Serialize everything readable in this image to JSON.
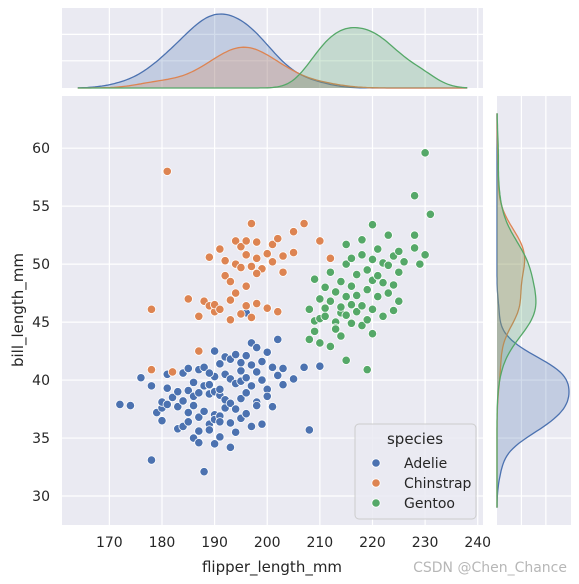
{
  "chart_data": {
    "type": "scatter",
    "subtype": "jointplot",
    "xlabel": "flipper_length_mm",
    "ylabel": "bill_length_mm",
    "xlim": [
      161,
      241
    ],
    "ylim": [
      27.5,
      64.5
    ],
    "xticks": [
      170,
      180,
      190,
      200,
      210,
      220,
      230,
      240
    ],
    "yticks": [
      30,
      35,
      40,
      45,
      50,
      55,
      60
    ],
    "grid": true,
    "legend": {
      "title": "species",
      "placement": "lower right"
    },
    "background": "#eaeaf2",
    "series": [
      {
        "name": "Adelie",
        "color": "#4c72b0",
        "points": [
          [
            172,
            37.9
          ],
          [
            174,
            37.8
          ],
          [
            176,
            40.2
          ],
          [
            178,
            39.5
          ],
          [
            178,
            33.1
          ],
          [
            179,
            37.2
          ],
          [
            180,
            37.6
          ],
          [
            180,
            38.1
          ],
          [
            180,
            36.5
          ],
          [
            181,
            39.3
          ],
          [
            181,
            37.9
          ],
          [
            182,
            38.5
          ],
          [
            183,
            35.8
          ],
          [
            183,
            37.7
          ],
          [
            184,
            40.6
          ],
          [
            184,
            36.0
          ],
          [
            184,
            38.2
          ],
          [
            185,
            39.1
          ],
          [
            185,
            41.0
          ],
          [
            185,
            36.4
          ],
          [
            186,
            37.8
          ],
          [
            186,
            39.8
          ],
          [
            186,
            35.0
          ],
          [
            186,
            38.6
          ],
          [
            187,
            40.9
          ],
          [
            187,
            36.8
          ],
          [
            187,
            34.6
          ],
          [
            187,
            38.9
          ],
          [
            188,
            39.5
          ],
          [
            188,
            37.3
          ],
          [
            188,
            32.1
          ],
          [
            188,
            41.1
          ],
          [
            189,
            39.6
          ],
          [
            189,
            36.2
          ],
          [
            189,
            38.8
          ],
          [
            189,
            35.7
          ],
          [
            190,
            40.3
          ],
          [
            190,
            37.0
          ],
          [
            190,
            42.5
          ],
          [
            190,
            39.0
          ],
          [
            190,
            36.6
          ],
          [
            190,
            34.5
          ],
          [
            191,
            38.7
          ],
          [
            191,
            41.4
          ],
          [
            191,
            36.9
          ],
          [
            191,
            39.2
          ],
          [
            191,
            35.1
          ],
          [
            192,
            40.5
          ],
          [
            192,
            37.6
          ],
          [
            192,
            42.0
          ],
          [
            192,
            38.3
          ],
          [
            193,
            40.1
          ],
          [
            193,
            36.3
          ],
          [
            193,
            41.8
          ],
          [
            193,
            38.0
          ],
          [
            193,
            34.2
          ],
          [
            194,
            39.7
          ],
          [
            194,
            37.5
          ],
          [
            194,
            42.2
          ],
          [
            194,
            35.5
          ],
          [
            195,
            40.8
          ],
          [
            195,
            38.4
          ],
          [
            195,
            36.7
          ],
          [
            195,
            41.5
          ],
          [
            195,
            39.9
          ],
          [
            196,
            37.1
          ],
          [
            196,
            42.1
          ],
          [
            196,
            38.9
          ],
          [
            196,
            40.2
          ],
          [
            196,
            45.8
          ],
          [
            197,
            39.5
          ],
          [
            197,
            41.3
          ],
          [
            197,
            36.0
          ],
          [
            197,
            43.2
          ],
          [
            198,
            40.7
          ],
          [
            198,
            38.1
          ],
          [
            198,
            42.8
          ],
          [
            198,
            37.8
          ],
          [
            199,
            40.0
          ],
          [
            199,
            36.2
          ],
          [
            199,
            41.6
          ],
          [
            200,
            39.2
          ],
          [
            200,
            38.6
          ],
          [
            200,
            42.4
          ],
          [
            201,
            41.1
          ],
          [
            201,
            37.7
          ],
          [
            202,
            40.4
          ],
          [
            202,
            43.5
          ],
          [
            203,
            41.0
          ],
          [
            203,
            39.6
          ],
          [
            205,
            40.1
          ],
          [
            207,
            41.1
          ],
          [
            208,
            35.7
          ],
          [
            210,
            41.2
          ],
          [
            181,
            40.5
          ],
          [
            183,
            39.0
          ],
          [
            185,
            37.2
          ],
          [
            187,
            35.6
          ],
          [
            189,
            40.6
          ],
          [
            191,
            36.4
          ]
        ]
      },
      {
        "name": "Chinstrap",
        "color": "#dd8452",
        "points": [
          [
            178,
            46.1
          ],
          [
            178,
            40.9
          ],
          [
            181,
            58.0
          ],
          [
            182,
            40.7
          ],
          [
            185,
            47.0
          ],
          [
            187,
            42.5
          ],
          [
            187,
            45.5
          ],
          [
            188,
            46.8
          ],
          [
            189,
            50.6
          ],
          [
            189,
            46.4
          ],
          [
            190,
            45.9
          ],
          [
            190,
            46.5
          ],
          [
            191,
            51.3
          ],
          [
            191,
            46.1
          ],
          [
            192,
            49.0
          ],
          [
            192,
            50.3
          ],
          [
            193,
            48.5
          ],
          [
            193,
            46.9
          ],
          [
            193,
            45.2
          ],
          [
            194,
            50.0
          ],
          [
            194,
            52.0
          ],
          [
            194,
            47.5
          ],
          [
            195,
            51.5
          ],
          [
            195,
            49.7
          ],
          [
            195,
            45.7
          ],
          [
            196,
            52.0
          ],
          [
            196,
            48.1
          ],
          [
            196,
            46.4
          ],
          [
            196,
            50.8
          ],
          [
            197,
            49.8
          ],
          [
            197,
            53.5
          ],
          [
            197,
            45.4
          ],
          [
            198,
            50.5
          ],
          [
            198,
            46.6
          ],
          [
            198,
            51.9
          ],
          [
            199,
            49.6
          ],
          [
            200,
            50.9
          ],
          [
            200,
            46.2
          ],
          [
            201,
            51.7
          ],
          [
            201,
            50.2
          ],
          [
            202,
            52.2
          ],
          [
            202,
            45.9
          ],
          [
            203,
            49.3
          ],
          [
            203,
            50.7
          ],
          [
            205,
            52.8
          ],
          [
            205,
            51.0
          ],
          [
            207,
            53.5
          ],
          [
            210,
            52.0
          ],
          [
            212,
            50.5
          ],
          [
            198,
            49.2
          ]
        ]
      },
      {
        "name": "Gentoo",
        "color": "#55a868",
        "points": [
          [
            208,
            43.5
          ],
          [
            208,
            46.1
          ],
          [
            209,
            44.2
          ],
          [
            209,
            45.1
          ],
          [
            209,
            48.7
          ],
          [
            210,
            47.0
          ],
          [
            210,
            45.3
          ],
          [
            210,
            43.2
          ],
          [
            211,
            46.2
          ],
          [
            211,
            48.0
          ],
          [
            211,
            45.5
          ],
          [
            212,
            46.8
          ],
          [
            212,
            42.9
          ],
          [
            212,
            49.3
          ],
          [
            213,
            45.0
          ],
          [
            213,
            47.6
          ],
          [
            213,
            44.5
          ],
          [
            214,
            45.8
          ],
          [
            214,
            48.5
          ],
          [
            214,
            46.3
          ],
          [
            214,
            43.8
          ],
          [
            215,
            47.2
          ],
          [
            215,
            50.0
          ],
          [
            215,
            45.6
          ],
          [
            215,
            41.7
          ],
          [
            216,
            48.1
          ],
          [
            216,
            46.5
          ],
          [
            216,
            44.9
          ],
          [
            216,
            50.5
          ],
          [
            217,
            47.3
          ],
          [
            217,
            45.9
          ],
          [
            217,
            49.1
          ],
          [
            218,
            46.4
          ],
          [
            218,
            50.8
          ],
          [
            218,
            44.7
          ],
          [
            218,
            52.1
          ],
          [
            219,
            49.5
          ],
          [
            219,
            47.8
          ],
          [
            219,
            45.2
          ],
          [
            220,
            50.4
          ],
          [
            220,
            48.6
          ],
          [
            220,
            46.1
          ],
          [
            220,
            53.4
          ],
          [
            221,
            49.0
          ],
          [
            221,
            51.3
          ],
          [
            221,
            47.2
          ],
          [
            222,
            50.1
          ],
          [
            222,
            48.4
          ],
          [
            222,
            45.5
          ],
          [
            223,
            52.5
          ],
          [
            223,
            49.9
          ],
          [
            223,
            47.5
          ],
          [
            224,
            50.7
          ],
          [
            224,
            48.2
          ],
          [
            225,
            51.1
          ],
          [
            225,
            46.8
          ],
          [
            225,
            49.3
          ],
          [
            226,
            50.2
          ],
          [
            228,
            51.4
          ],
          [
            228,
            55.9
          ],
          [
            229,
            50.0
          ],
          [
            230,
            59.6
          ],
          [
            230,
            50.8
          ],
          [
            231,
            54.3
          ],
          [
            219,
            40.9
          ],
          [
            228,
            52.5
          ],
          [
            224,
            46.0
          ],
          [
            220,
            44.0
          ],
          [
            213,
            44.4
          ],
          [
            215,
            51.7
          ]
        ]
      }
    ]
  },
  "watermark": "CSDN @Chen_Chance"
}
